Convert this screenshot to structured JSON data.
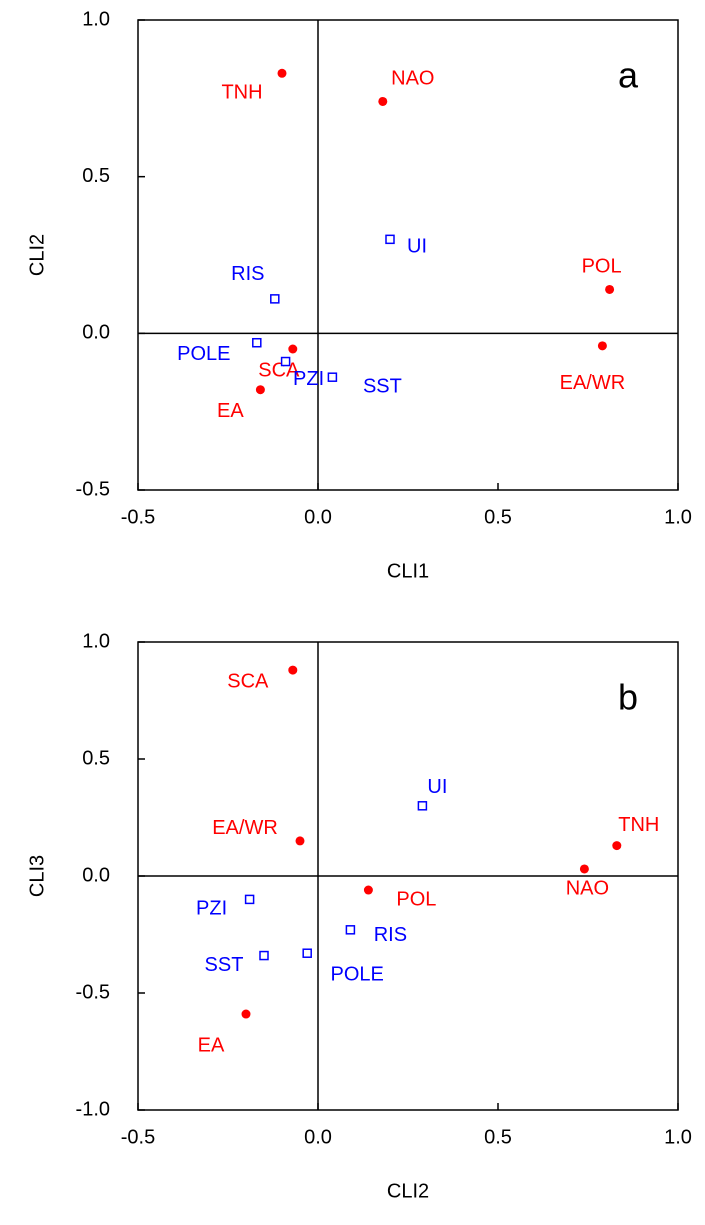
{
  "chart_data": [
    {
      "type": "scatter",
      "annotation": "a",
      "xlabel": "CLI1",
      "ylabel": "CLI2",
      "xlim": [
        -0.5,
        1.0
      ],
      "ylim": [
        -0.5,
        1.0
      ],
      "xticks": [
        -0.5,
        {
          "value": 0,
          "label": "0.0"
        },
        0.5,
        {
          "value": 1,
          "label": "1.0"
        }
      ],
      "yticks": [
        -0.5,
        {
          "value": 0,
          "label": "0.0"
        },
        0.5,
        {
          "value": 1,
          "label": "1.0"
        }
      ],
      "series": [
        {
          "marker": "circle",
          "color": "#ff0000",
          "labels": [
            "TNH",
            "NAO",
            "POL",
            "EA/WR",
            "SCA",
            "EA"
          ],
          "x": [
            -0.1,
            0.18,
            0.81,
            0.79,
            -0.07,
            -0.16
          ],
          "values": [
            0.83,
            0.74,
            0.14,
            -0.04,
            -0.05,
            -0.18
          ]
        },
        {
          "marker": "square",
          "color": "#0000ff",
          "labels": [
            "UI",
            "RIS",
            "POLE",
            "PZI",
            "SST"
          ],
          "x": [
            0.2,
            -0.12,
            -0.17,
            -0.09,
            0.04
          ],
          "values": [
            0.3,
            0.11,
            -0.03,
            -0.09,
            -0.14
          ]
        }
      ]
    },
    {
      "type": "scatter",
      "annotation": "b",
      "xlabel": "CLI2",
      "ylabel": "CLI3",
      "xlim": [
        -0.5,
        1.0
      ],
      "ylim": [
        -1.0,
        1.0
      ],
      "xticks": [
        -0.5,
        {
          "value": 0,
          "label": "0.0"
        },
        0.5,
        {
          "value": 1,
          "label": "1.0"
        }
      ],
      "yticks": [
        {
          "value": -1,
          "label": "-1.0"
        },
        -0.5,
        {
          "value": 0,
          "label": "0.0"
        },
        0.5,
        {
          "value": 1,
          "label": "1.0"
        }
      ],
      "series": [
        {
          "marker": "circle",
          "color": "#ff0000",
          "labels": [
            "SCA",
            "EA/WR",
            "POL",
            "NAO",
            "TNH",
            "EA"
          ],
          "x": [
            -0.07,
            -0.05,
            0.14,
            0.74,
            0.83,
            -0.2
          ],
          "values": [
            0.88,
            0.15,
            -0.06,
            0.03,
            0.13,
            -0.59
          ]
        },
        {
          "marker": "square",
          "color": "#0000ff",
          "labels": [
            "UI",
            "PZI",
            "SST",
            "POLE",
            "RIS"
          ],
          "x": [
            0.29,
            -0.19,
            -0.15,
            -0.03,
            0.09
          ],
          "values": [
            0.3,
            -0.1,
            -0.34,
            -0.33,
            -0.23
          ]
        }
      ]
    }
  ]
}
